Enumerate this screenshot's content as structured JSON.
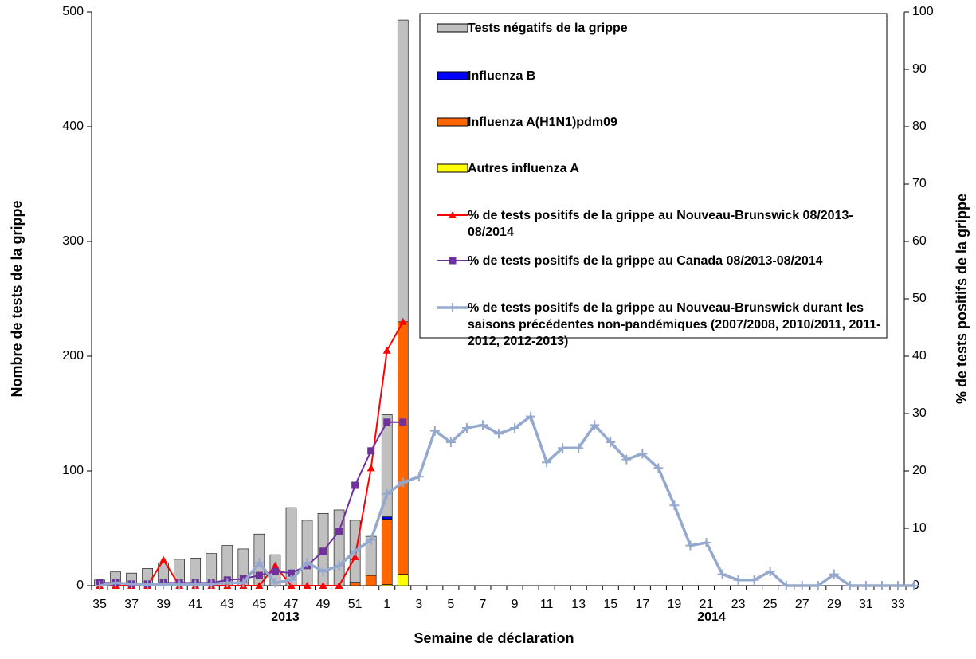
{
  "chart_data": {
    "type": "bar",
    "x_label": "Semaine de déclaration",
    "y_label": "Nombre de tests de la grippe",
    "y2_label": "% de tests positifs de la grippe",
    "year_labels": [
      "2013",
      "2014"
    ],
    "categories": [
      "35",
      null,
      "37",
      null,
      "39",
      null,
      "41",
      null,
      "43",
      null,
      "45",
      null,
      "47",
      null,
      "49",
      null,
      "51",
      null,
      "1",
      null,
      "3",
      null,
      "5",
      null,
      "7",
      null,
      "9",
      null,
      "11",
      null,
      "13",
      null,
      "15",
      null,
      "17",
      null,
      "19",
      null,
      "21",
      null,
      "23",
      null,
      "25",
      null,
      "27",
      null,
      "29",
      null,
      "31",
      null,
      "33",
      null
    ],
    "ylim": [
      0,
      500
    ],
    "yticks": [
      0,
      100,
      200,
      300,
      400,
      500
    ],
    "y2lim": [
      0,
      100
    ],
    "y2ticks": [
      0,
      10,
      20,
      30,
      40,
      50,
      60,
      70,
      80,
      90,
      100
    ],
    "series": [
      {
        "name": "Tests négatifs de la grippe",
        "type": "bar",
        "color": "#c0c0c0",
        "values": [
          5,
          12,
          11,
          15,
          20,
          23,
          24,
          28,
          35,
          32,
          45,
          27,
          68,
          57,
          63,
          66,
          54,
          34,
          89,
          263,
          null,
          null,
          null,
          null,
          null,
          null,
          null,
          null,
          null,
          null,
          null,
          null,
          null,
          null,
          null,
          null,
          null,
          null,
          null,
          null,
          null,
          null,
          null,
          null,
          null,
          null,
          null,
          null,
          null,
          null,
          null,
          null
        ]
      },
      {
        "name": "Influenza B",
        "type": "bar",
        "color": "#0000ff",
        "values": [
          0,
          0,
          0,
          0,
          0,
          0,
          0,
          0,
          0,
          0,
          0,
          0,
          0,
          0,
          0,
          0,
          0,
          0,
          2,
          0,
          null,
          null,
          null,
          null,
          null,
          null,
          null,
          null,
          null,
          null,
          null,
          null,
          null,
          null,
          null,
          null,
          null,
          null,
          null,
          null,
          null,
          null,
          null,
          null,
          null,
          null,
          null,
          null,
          null,
          null,
          null,
          null
        ]
      },
      {
        "name": "Influenza A(H1N1)pdm09",
        "type": "bar",
        "color": "#ff6600",
        "values": [
          0,
          0,
          0,
          0,
          0,
          0,
          0,
          0,
          0,
          0,
          0,
          0,
          0,
          0,
          0,
          0,
          3,
          9,
          57,
          220,
          null,
          null,
          null,
          null,
          null,
          null,
          null,
          null,
          null,
          null,
          null,
          null,
          null,
          null,
          null,
          null,
          null,
          null,
          null,
          null,
          null,
          null,
          null,
          null,
          null,
          null,
          null,
          null,
          null,
          null,
          null,
          null
        ]
      },
      {
        "name": "Autres influenza A",
        "type": "bar",
        "color": "#ffff00",
        "values": [
          0,
          0,
          0,
          0,
          0,
          0,
          0,
          0,
          0,
          0,
          0,
          0,
          0,
          0,
          0,
          0,
          0,
          0,
          1,
          10,
          null,
          null,
          null,
          null,
          null,
          null,
          null,
          null,
          null,
          null,
          null,
          null,
          null,
          null,
          null,
          null,
          null,
          null,
          null,
          null,
          null,
          null,
          null,
          null,
          null,
          null,
          null,
          null,
          null,
          null,
          null,
          null
        ]
      },
      {
        "name": "% de tests positifs de la grippe  au Nouveau-Brunswick 08/2013-08/2014",
        "type": "line",
        "axis": "y2",
        "color": "#ff0000",
        "marker": "triangle",
        "values": [
          0,
          0,
          0,
          0,
          4.5,
          0,
          0,
          0,
          0,
          0,
          0,
          3.5,
          0,
          0,
          0,
          0,
          5,
          20.5,
          41,
          46,
          null,
          null,
          null,
          null,
          null,
          null,
          null,
          null,
          null,
          null,
          null,
          null,
          null,
          null,
          null,
          null,
          null,
          null,
          null,
          null,
          null,
          null,
          null,
          null,
          null,
          null,
          null,
          null,
          null,
          null,
          null,
          null
        ]
      },
      {
        "name": "% de tests positifs de la grippe  au Canada 08/2013-08/2014",
        "type": "line",
        "axis": "y2",
        "color": "#7030a0",
        "marker": "square",
        "values": [
          0.5,
          0.5,
          0.3,
          0.3,
          0.5,
          0.5,
          0.5,
          0.5,
          1,
          1.2,
          1.8,
          2.5,
          2.2,
          3.5,
          6,
          9.5,
          17.5,
          23.5,
          28.5,
          28.5,
          null,
          null,
          null,
          null,
          null,
          null,
          null,
          null,
          null,
          null,
          null,
          null,
          null,
          null,
          null,
          null,
          null,
          null,
          null,
          null,
          null,
          null,
          null,
          null,
          null,
          null,
          null,
          null,
          null,
          null,
          null,
          null
        ]
      },
      {
        "name": "% de tests positifs de la grippe  au Nouveau-Brunswick durant les saisons précédentes non-pandémiques (2007/2008, 2010/2011, 2011-2012, 2012-2013)",
        "type": "line",
        "axis": "y2",
        "color": "#95a9cf",
        "marker": "plus",
        "values": [
          0,
          0.5,
          0.3,
          0.2,
          0.2,
          0.2,
          0.2,
          0.3,
          0.5,
          0.5,
          4,
          0.5,
          1,
          4,
          2.5,
          3.5,
          6,
          8,
          16,
          18,
          19,
          27,
          25,
          27.5,
          28,
          26.5,
          27.5,
          29.5,
          21.5,
          24,
          24,
          28,
          25,
          22,
          23,
          20.5,
          14,
          7,
          7.5,
          2,
          1,
          1,
          2.5,
          0,
          0,
          0,
          2,
          0,
          0,
          0,
          0,
          0
        ]
      }
    ]
  }
}
